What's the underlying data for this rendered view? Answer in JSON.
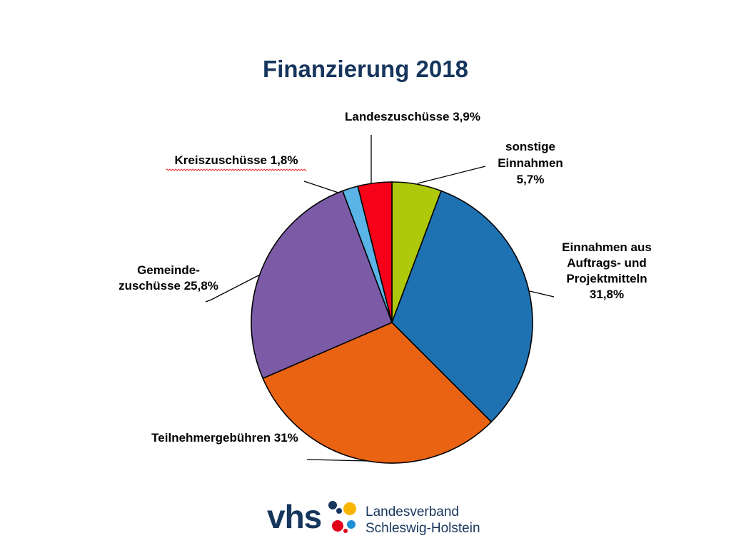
{
  "chart_data": {
    "type": "pie",
    "title": "Finanzierung 2018",
    "start_angle_deg": 0,
    "direction": "clockwise",
    "slices": [
      {
        "name": "sonstige Einnahmen",
        "value": 5.7,
        "label_lines": [
          "sonstige",
          "Einnahmen",
          "5,7%"
        ],
        "color": "#aec90b"
      },
      {
        "name": "Einnahmen aus Auftrags- und Projektmitteln",
        "value": 31.8,
        "label_lines": [
          "Einnahmen aus",
          "Auftrags- und",
          "Projektmitteln",
          "31,8%"
        ],
        "color": "#1f72b2"
      },
      {
        "name": "Teilnehmergebühren",
        "value": 31,
        "label_lines": [
          "Teilnehmergebühren 31%"
        ],
        "color": "#e96312"
      },
      {
        "name": "Gemeindezuschüsse",
        "value": 25.8,
        "label_lines": [
          "Gemeinde-",
          "zuschüsse 25,8%"
        ],
        "color": "#7b5ba6"
      },
      {
        "name": "Kreiszuschüsse",
        "value": 1.8,
        "label_lines": [
          "Kreiszuschüsse 1,8%"
        ],
        "color": "#5ab4e5"
      },
      {
        "name": "Landeszuschüsse",
        "value": 3.9,
        "label_lines": [
          "Landeszuschüsse 3,9%"
        ],
        "color": "#f7001a"
      }
    ]
  },
  "logo": {
    "wordmark": "vhs",
    "line1": "Landesverband",
    "line2": "Schleswig-Holstein",
    "colors": {
      "navy": "#17365d",
      "yellow": "#f7b500",
      "red": "#e2001a",
      "blue": "#1f8fd6"
    }
  }
}
